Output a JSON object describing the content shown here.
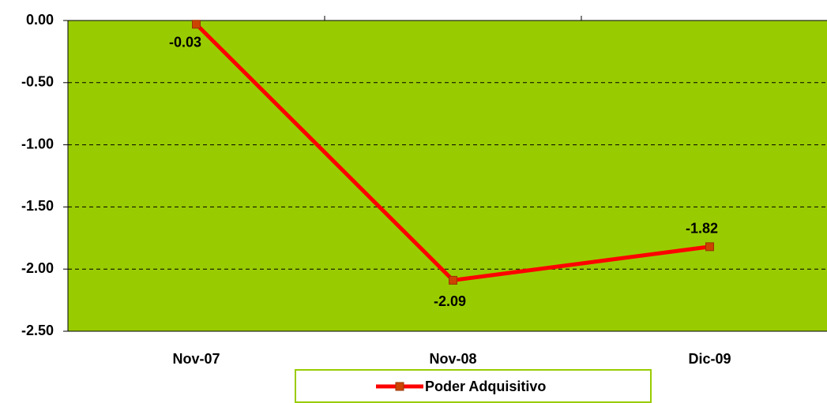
{
  "chart_data": {
    "type": "line",
    "categories": [
      "Nov-07",
      "Nov-08",
      "Dic-09"
    ],
    "series": [
      {
        "name": "Poder Adquisitivo",
        "color": "#ff0000",
        "marker_color": "#cc4400",
        "values": [
          -0.03,
          -2.09,
          -1.82
        ]
      }
    ],
    "ylim": [
      -2.5,
      0
    ],
    "yticks": [
      {
        "value": 0,
        "label": "0.00"
      },
      {
        "value": -0.5,
        "label": "-0.50"
      },
      {
        "value": -1,
        "label": "-1.00"
      },
      {
        "value": -1.5,
        "label": "-1.50"
      },
      {
        "value": -2,
        "label": "-2.00"
      },
      {
        "value": -2.5,
        "label": "-2.50"
      }
    ],
    "grid": true,
    "plot_color": "#99cc00",
    "legend": "bottom"
  }
}
